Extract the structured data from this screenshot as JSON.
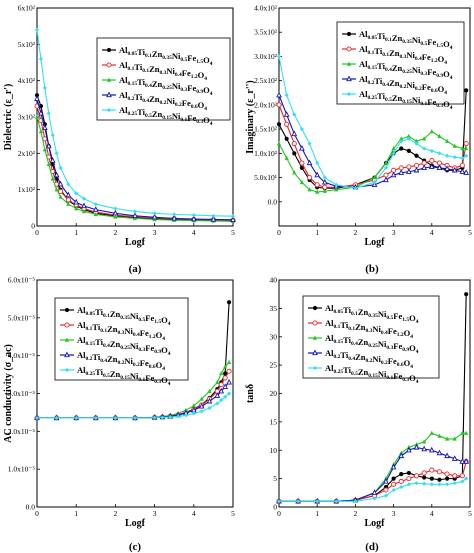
{
  "colors": {
    "s1": "#000000",
    "s2": "#e8262c",
    "s3": "#22c722",
    "s4": "#1414b4",
    "s5": "#33e0f0"
  },
  "legend_entries": [
    "Al0.05Ti0.1Zn0.35Ni0.5Fe1.5O4",
    "Al0.1Ti0.1Zn0.3Ni0.4Fe1.2O4",
    "Al0.15Ti0.4Zn0.25Ni0.3Fe0.9O4",
    "Al0.2Ti0.4Zn0.2Ni0.2Fe0.6O4",
    "Al0.25Ti0.5Zn0.15Ni0.1Fe0.3O4"
  ],
  "chart_data": [
    {
      "panel": "(a)",
      "type": "line",
      "xlabel": "Logf",
      "ylabel": "Dielectric (ε_r')",
      "xlim": [
        0,
        5
      ],
      "ylim": [
        0,
        600
      ],
      "xticks": [
        "0",
        "1",
        "2",
        "3",
        "4",
        "5"
      ],
      "yticks": [
        "0",
        "1x10²",
        "2x10²",
        "3x10²",
        "4x10²",
        "5x10²",
        "6x10²"
      ],
      "x": [
        0,
        0.1,
        0.2,
        0.3,
        0.4,
        0.5,
        0.6,
        0.8,
        1.0,
        1.2,
        1.5,
        2.0,
        2.5,
        3.0,
        3.5,
        4.0,
        4.5,
        5.0
      ],
      "series": [
        {
          "name": "Al0.05Ti0.1Zn0.35Ni0.5Fe1.5O4",
          "values": [
            360,
            330,
            280,
            220,
            170,
            130,
            100,
            70,
            55,
            45,
            35,
            28,
            23,
            20,
            18,
            16,
            15,
            14
          ]
        },
        {
          "name": "Al0.1Ti0.1Zn0.3Ni0.4Fe1.2O4",
          "values": [
            330,
            290,
            240,
            190,
            150,
            115,
            95,
            72,
            58,
            48,
            38,
            30,
            25,
            22,
            20,
            18,
            17,
            16
          ]
        },
        {
          "name": "Al0.15Ti0.4Zn0.25Ni0.3Fe0.9O4",
          "values": [
            300,
            260,
            210,
            170,
            130,
            100,
            80,
            60,
            48,
            40,
            32,
            25,
            21,
            18,
            16,
            15,
            14,
            13
          ]
        },
        {
          "name": "Al0.2Ti0.4Zn0.2Ni0.2Fe0.6O4",
          "values": [
            350,
            310,
            270,
            220,
            180,
            140,
            115,
            85,
            65,
            55,
            45,
            35,
            28,
            24,
            21,
            19,
            18,
            17
          ]
        },
        {
          "name": "Al0.25Ti0.5Zn0.15Ni0.1Fe0.3O4",
          "values": [
            540,
            460,
            380,
            310,
            250,
            200,
            160,
            115,
            90,
            75,
            60,
            48,
            40,
            35,
            32,
            30,
            28,
            27
          ]
        }
      ],
      "legend_position": "top-right"
    },
    {
      "panel": "(b)",
      "type": "line",
      "xlabel": "Logf",
      "ylabel": "Imaginary (ε_r'')",
      "xlim": [
        0,
        5
      ],
      "ylim": [
        -50,
        400
      ],
      "xticks": [
        "0",
        "1",
        "2",
        "3",
        "4",
        "5"
      ],
      "yticks": [
        "0.0",
        "5.0x10¹",
        "1.0x10²",
        "1.5x10²",
        "2.0x10²",
        "2.5x10²",
        "3.0x10²",
        "3.5x10²",
        "4.0x10²"
      ],
      "x": [
        0,
        0.2,
        0.4,
        0.6,
        0.8,
        1.0,
        1.2,
        1.5,
        2.0,
        2.5,
        2.8,
        3.0,
        3.2,
        3.4,
        3.6,
        3.8,
        4.0,
        4.2,
        4.4,
        4.6,
        4.8,
        4.9
      ],
      "series": [
        {
          "name": "Al0.05Ti0.1Zn0.35Ni0.5Fe1.5O4",
          "values": [
            160,
            130,
            100,
            70,
            45,
            30,
            28,
            28,
            35,
            50,
            80,
            100,
            110,
            105,
            95,
            85,
            75,
            70,
            65,
            65,
            70,
            230
          ]
        },
        {
          "name": "Al0.1Ti0.1Zn0.3Ni0.4Fe1.2O4",
          "values": [
            200,
            160,
            120,
            80,
            50,
            35,
            30,
            30,
            35,
            45,
            55,
            65,
            70,
            72,
            75,
            80,
            85,
            80,
            75,
            70,
            75,
            120
          ]
        },
        {
          "name": "Al0.15Ti0.4Zn0.25Ni0.3Fe0.9O4",
          "values": [
            120,
            90,
            60,
            40,
            25,
            20,
            22,
            25,
            30,
            50,
            80,
            110,
            130,
            135,
            125,
            130,
            145,
            135,
            125,
            115,
            110,
            110
          ]
        },
        {
          "name": "Al0.2Ti0.4Zn0.2Ni0.2Fe0.6O4",
          "values": [
            220,
            180,
            140,
            110,
            80,
            55,
            40,
            32,
            30,
            35,
            45,
            55,
            60,
            62,
            65,
            70,
            72,
            70,
            68,
            65,
            62,
            60
          ]
        },
        {
          "name": "Al0.25Ti0.5Zn0.15Ni0.1Fe0.3O4",
          "values": [
            300,
            220,
            180,
            150,
            120,
            80,
            50,
            35,
            28,
            40,
            70,
            100,
            125,
            130,
            120,
            110,
            105,
            100,
            95,
            92,
            90,
            95
          ]
        }
      ],
      "legend_position": "top-right"
    },
    {
      "panel": "(c)",
      "type": "line",
      "xlabel": "Logf",
      "ylabel": "AC conductivity (σ_ac)",
      "xlim": [
        0,
        5
      ],
      "ylim": [
        -4e-05,
        6.2e-05
      ],
      "xticks": [
        "0",
        "1",
        "2",
        "3",
        "4",
        "5"
      ],
      "yticks": [
        "0.0",
        "1.0x10⁻⁵",
        "2.0x10⁻⁵",
        "3.0x10⁻⁵",
        "4.0x10⁻⁵",
        "5.0x10⁻⁵",
        "6.0x10⁻⁵"
      ],
      "x": [
        0,
        0.5,
        1.0,
        1.5,
        2.0,
        2.5,
        3.0,
        3.2,
        3.4,
        3.6,
        3.8,
        4.0,
        4.2,
        4.4,
        4.6,
        4.7,
        4.8,
        4.9
      ],
      "series": [
        {
          "name": "Al0.05Ti0.1Zn0.35Ni0.5Fe1.5O4",
          "values": [
            0,
            0,
            0,
            0,
            0,
            0,
            2e-07,
            4e-07,
            8e-07,
            1.5e-06,
            2.5e-06,
            4e-06,
            6e-06,
            9e-06,
            1.3e-05,
            1.6e-05,
            2e-05,
            5.2e-05
          ]
        },
        {
          "name": "Al0.1Ti0.1Zn0.3Ni0.4Fe1.2O4",
          "values": [
            0,
            0,
            0,
            0,
            0,
            0,
            2e-07,
            4e-07,
            8e-07,
            1.4e-06,
            2.4e-06,
            3.8e-06,
            5.8e-06,
            8.5e-06,
            1.2e-05,
            1.5e-05,
            1.8e-05,
            2.1e-05
          ]
        },
        {
          "name": "Al0.15Ti0.4Zn0.25Ni0.3Fe0.9O4",
          "values": [
            0,
            0,
            0,
            0,
            0,
            0,
            3e-07,
            6e-07,
            1.2e-06,
            2e-06,
            3.5e-06,
            5.5e-06,
            8.5e-06,
            1.2e-05,
            1.6e-05,
            2e-05,
            2.3e-05,
            2.5e-05
          ]
        },
        {
          "name": "Al0.2Ti0.4Zn0.2Ni0.2Fe0.6O4",
          "values": [
            0,
            0,
            0,
            0,
            0,
            0,
            2e-07,
            4e-07,
            7e-07,
            1.3e-06,
            2.2e-06,
            3.5e-06,
            5.2e-06,
            7.5e-06,
            1e-05,
            1.2e-05,
            1.4e-05,
            1.6e-05
          ]
        },
        {
          "name": "Al0.25Ti0.5Zn0.15Ni0.1Fe0.3O4",
          "values": [
            0,
            0,
            0,
            0,
            0,
            0,
            1e-07,
            2e-07,
            4e-07,
            7e-07,
            1.2e-06,
            2e-06,
            3e-06,
            4.5e-06,
            6.5e-06,
            8e-06,
            9.5e-06,
            1.1e-05
          ]
        }
      ],
      "legend_position": "top-right"
    },
    {
      "panel": "(d)",
      "type": "line",
      "xlabel": "Logf",
      "ylabel": "tanδ",
      "xlim": [
        0,
        5
      ],
      "ylim": [
        0,
        40
      ],
      "xticks": [
        "0",
        "1",
        "2",
        "3",
        "4",
        "5"
      ],
      "yticks": [
        "0",
        "5",
        "10",
        "15",
        "20",
        "25",
        "30",
        "35",
        "40"
      ],
      "x": [
        0,
        0.5,
        1.0,
        1.5,
        2.0,
        2.5,
        2.8,
        3.0,
        3.2,
        3.4,
        3.6,
        3.8,
        4.0,
        4.2,
        4.4,
        4.6,
        4.8,
        4.9
      ],
      "series": [
        {
          "name": "Al0.05Ti0.1Zn0.35Ni0.5Fe1.5O4",
          "values": [
            1,
            1,
            1,
            1,
            1.2,
            2,
            3.5,
            5,
            5.8,
            6,
            5.5,
            5.2,
            5,
            4.8,
            5,
            5,
            5.5,
            37.5
          ]
        },
        {
          "name": "Al0.1Ti0.1Zn0.3Ni0.4Fe1.2O4",
          "values": [
            1,
            1,
            1,
            1,
            1.2,
            2,
            3,
            4,
            4.5,
            5,
            5.5,
            6,
            6.5,
            6.2,
            5.8,
            5.5,
            5.5,
            8
          ]
        },
        {
          "name": "Al0.15Ti0.4Zn0.25Ni0.3Fe0.9O4",
          "values": [
            1,
            1,
            1,
            1,
            1.2,
            2.5,
            5,
            7.5,
            9.5,
            10.5,
            11,
            11.5,
            13,
            12.5,
            12,
            12,
            13,
            13
          ]
        },
        {
          "name": "Al0.2Ti0.4Zn0.2Ni0.2Fe0.6O4",
          "values": [
            1,
            1,
            1,
            1,
            1.2,
            2.5,
            4.5,
            7,
            9,
            10,
            10.5,
            10.2,
            10,
            9.5,
            9,
            8.5,
            8,
            8
          ]
        },
        {
          "name": "Al0.25Ti0.5Zn0.15Ni0.1Fe0.3O4",
          "values": [
            1,
            1,
            1,
            1,
            1,
            1.5,
            2,
            3,
            3.5,
            4,
            4.2,
            4.1,
            4,
            4,
            4,
            4.2,
            4.5,
            5
          ]
        }
      ],
      "legend_position": "top-right"
    }
  ]
}
